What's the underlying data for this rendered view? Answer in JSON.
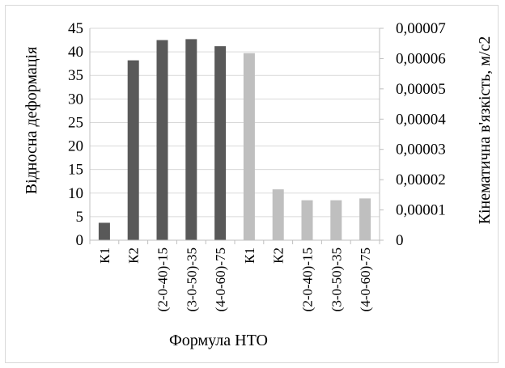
{
  "chart_data": {
    "type": "bar",
    "categories": [
      "К1",
      "К2",
      "(2-0-40)-15",
      "(3-0-50)-35",
      "(4-0-60)-75",
      "К1",
      "К2",
      "(2-0-40)-15",
      "(3-0-50)-35",
      "(4-0-60)-75"
    ],
    "series": [
      {
        "axis": "left",
        "color": "#595959",
        "values": [
          3.7,
          38.2,
          42.5,
          42.7,
          41.2,
          null,
          null,
          null,
          null,
          null
        ]
      },
      {
        "axis": "right",
        "color": "#bfbfbf",
        "values": [
          null,
          null,
          null,
          null,
          null,
          6.18e-05,
          1.68e-05,
          1.32e-05,
          1.32e-05,
          1.38e-05
        ]
      }
    ],
    "xlabel": "Формула НТО",
    "ylabel": "Відносна деформація",
    "y2label": "Кінематична в'язкість, м/с2",
    "ylim": [
      0,
      45
    ],
    "yticks": [
      "0",
      "5",
      "10",
      "15",
      "20",
      "25",
      "30",
      "35",
      "40",
      "45"
    ],
    "y2lim": [
      0,
      7e-05
    ],
    "y2ticks": [
      "0",
      "0,00001",
      "0,00002",
      "0,00003",
      "0,00004",
      "0,00005",
      "0,00006",
      "0,00007"
    ],
    "grid": true,
    "legend": "none"
  }
}
